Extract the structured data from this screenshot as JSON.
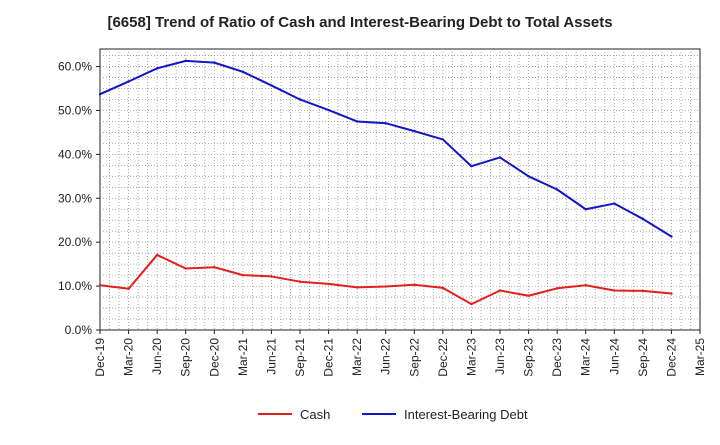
{
  "chart_data": {
    "type": "line",
    "title": "[6658]  Trend of Ratio of Cash and Interest-Bearing Debt to Total Assets",
    "xlabel": "",
    "ylabel": "",
    "ylim": [
      0,
      0.64
    ],
    "y_ticks": [
      0,
      0.1,
      0.2,
      0.3,
      0.4,
      0.5,
      0.6
    ],
    "y_tick_labels": [
      "0.0%",
      "10.0%",
      "20.0%",
      "30.0%",
      "40.0%",
      "50.0%",
      "60.0%"
    ],
    "categories": [
      "Dec-19",
      "Mar-20",
      "Jun-20",
      "Sep-20",
      "Dec-20",
      "Mar-21",
      "Jun-21",
      "Sep-21",
      "Dec-21",
      "Mar-22",
      "Jun-22",
      "Sep-22",
      "Dec-22",
      "Mar-23",
      "Jun-23",
      "Sep-23",
      "Dec-23",
      "Mar-24",
      "Jun-24",
      "Sep-24",
      "Dec-24",
      "Mar-25"
    ],
    "grid": true,
    "legend_position": "bottom",
    "series": [
      {
        "name": "Cash",
        "color": "#e0201b",
        "values": [
          0.102,
          0.094,
          0.171,
          0.14,
          0.143,
          0.125,
          0.122,
          0.11,
          0.105,
          0.097,
          0.099,
          0.103,
          0.096,
          0.059,
          0.09,
          0.078,
          0.095,
          0.102,
          0.09,
          0.089,
          0.083,
          null
        ]
      },
      {
        "name": "Interest-Bearing Debt",
        "color": "#1515c8",
        "values": [
          0.537,
          0.566,
          0.596,
          0.613,
          0.609,
          0.588,
          0.557,
          0.525,
          0.501,
          0.475,
          0.471,
          0.453,
          0.434,
          0.373,
          0.393,
          0.35,
          0.32,
          0.275,
          0.288,
          0.253,
          0.213,
          null
        ]
      }
    ]
  }
}
